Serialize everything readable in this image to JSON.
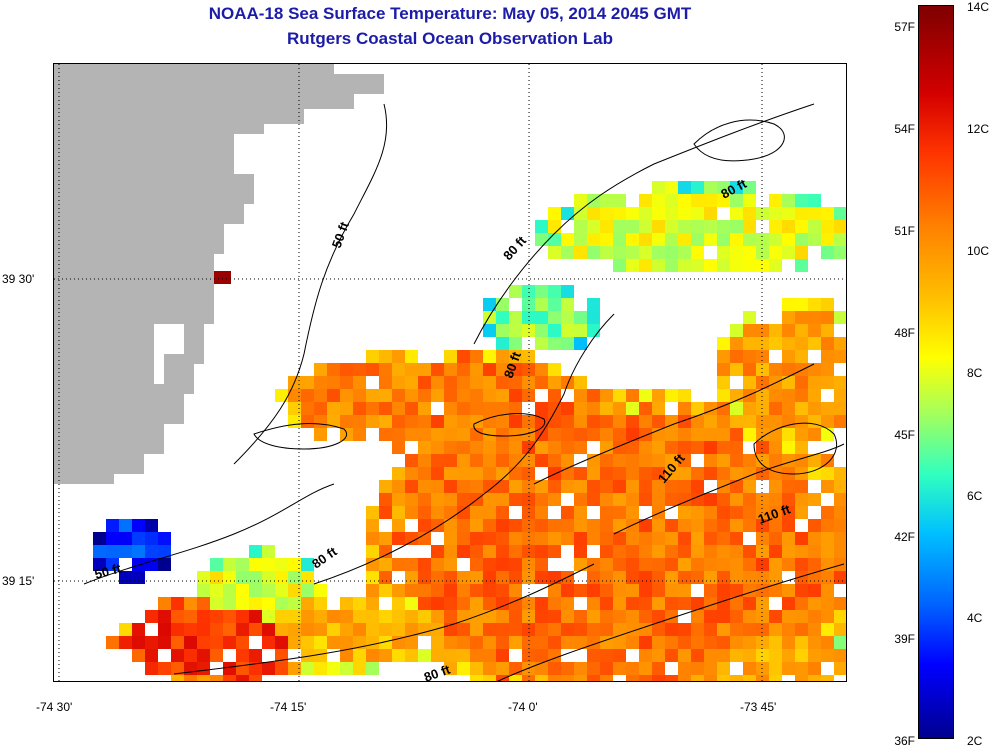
{
  "title": {
    "line1": "NOAA-18 Sea Surface Temperature:  May 05, 2014 2045 GMT",
    "line2": "Rutgers Coastal Ocean Observation Lab"
  },
  "axes": {
    "x_ticks": [
      "-74 30'",
      "-74 15'",
      "-74 0'",
      "-73 45'"
    ],
    "y_ticks": [
      "39 30'",
      "39 15'"
    ]
  },
  "contour_labels": [
    "50 ft",
    "80 ft",
    "80 ft",
    "80 ft",
    "110 ft",
    "110 ft",
    "50 ft",
    "80 ft",
    "80 ft"
  ],
  "colorbar": {
    "celsius": [
      "14C",
      "12C",
      "10C",
      "8C",
      "6C",
      "4C",
      "2C"
    ],
    "fahrenheit": [
      "57F",
      "54F",
      "51F",
      "48F",
      "45F",
      "42F",
      "39F",
      "36F"
    ],
    "range_c": [
      2,
      14
    ]
  },
  "colors": {
    "title": "#1c1ca8",
    "land": "#b4b4b4",
    "no_data": "#ffffff"
  }
}
